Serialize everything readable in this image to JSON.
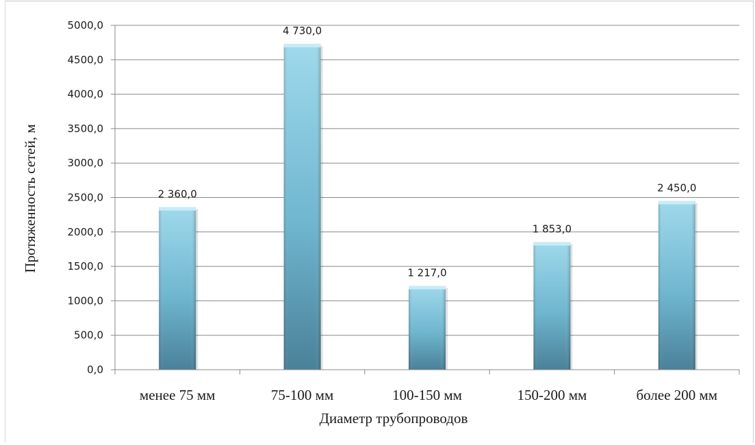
{
  "chart_data": {
    "type": "bar",
    "categories": [
      "менее 75 мм",
      "75-100 мм",
      "100-150 мм",
      "150-200 мм",
      "более 200 мм"
    ],
    "values": [
      2360,
      4730,
      1217,
      1853,
      2450
    ],
    "data_labels": [
      "2 360,0",
      "4 730,0",
      "1 217,0",
      "1 853,0",
      "2 450,0"
    ],
    "title": "",
    "xlabel": "Диаметр трубопроводов",
    "ylabel": "Протяженность сетей, м",
    "ylim": [
      0,
      5000
    ],
    "yticks": [
      0,
      500,
      1000,
      1500,
      2000,
      2500,
      3000,
      3500,
      4000,
      4500,
      5000
    ],
    "ytick_labels": [
      "0,0",
      "500,0",
      "1000,0",
      "1500,0",
      "2000,0",
      "2500,0",
      "3000,0",
      "3500,0",
      "4000,0",
      "4500,0",
      "5000,0"
    ],
    "grid": true,
    "legend": "none",
    "colors": {
      "bar_light": "#9fd9ec",
      "bar_mid": "#6fb6cf",
      "bar_dark": "#4a8199",
      "bar_top": "#c8ecf7",
      "gridline": "#888888"
    }
  }
}
